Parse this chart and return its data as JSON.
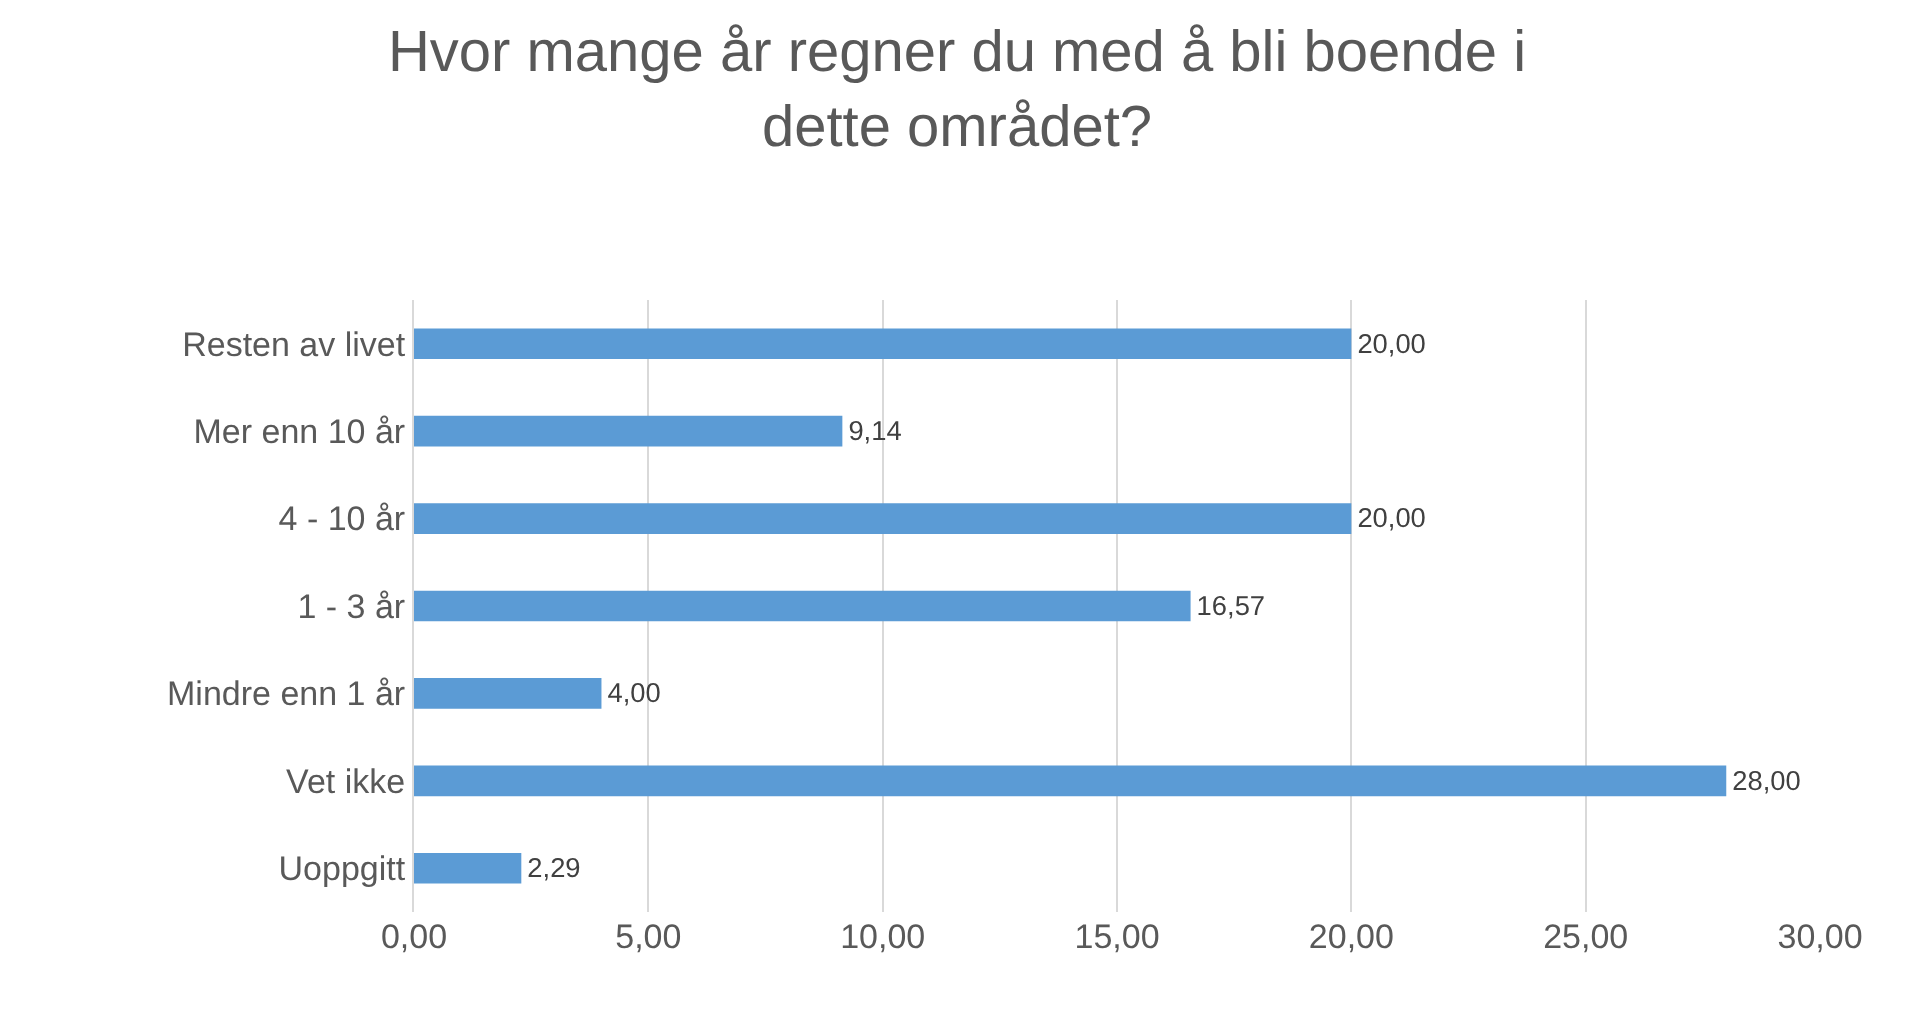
{
  "chart_data": {
    "type": "bar",
    "orientation": "horizontal",
    "title": "Hvor mange år regner du med å bli boende i dette området?",
    "categories": [
      "Resten av livet",
      "Mer enn 10 år",
      "4 - 10 år",
      "1 - 3 år",
      "Mindre enn 1 år",
      "Vet ikke",
      "Uoppgitt"
    ],
    "values": [
      20,
      9.14,
      20,
      16.57,
      4,
      28,
      2.29
    ],
    "value_labels": [
      "20,00",
      "9,14",
      "20,00",
      "16,57",
      "4,00",
      "28,00",
      "2,29"
    ],
    "color": "#5b9bd5",
    "xlim": [
      0,
      30
    ],
    "xticks": [
      {
        "value": 0,
        "label": "0,00"
      },
      {
        "value": 5,
        "label": "5,00"
      },
      {
        "value": 10,
        "label": "10,00"
      },
      {
        "value": 15,
        "label": "15,00"
      },
      {
        "value": 20,
        "label": "20,00"
      },
      {
        "value": 25,
        "label": "25,00"
      },
      {
        "value": 30,
        "label": "30,00"
      }
    ],
    "grid": "x"
  }
}
